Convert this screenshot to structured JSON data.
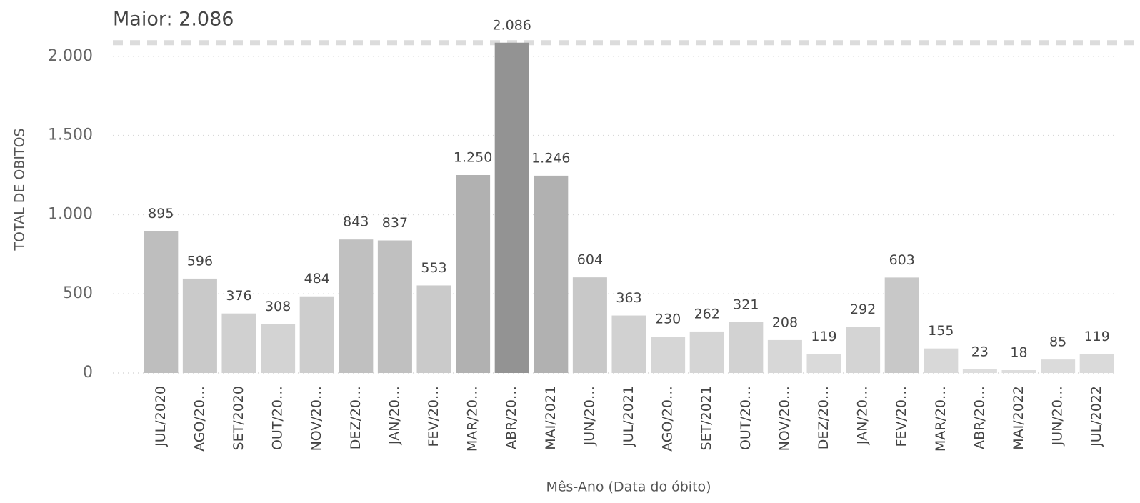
{
  "chart_data": {
    "type": "bar",
    "annotation": {
      "label": "Maior: 2.086",
      "value": 2086
    },
    "y_label": "TOTAL DE OBITOS",
    "x_label": "Mês-Ano (Data do óbito)",
    "categories": [
      "JUL/2020",
      "AGO/20…",
      "SET/2020",
      "OUT/20…",
      "NOV/20…",
      "DEZ/20…",
      "JAN/20…",
      "FEV/20…",
      "MAR/20…",
      "ABR/20…",
      "MAI/2021",
      "JUN/20…",
      "JUL/2021",
      "AGO/20…",
      "SET/2021",
      "OUT/20…",
      "NOV/20…",
      "DEZ/20…",
      "JAN/20…",
      "FEV/20…",
      "MAR/20…",
      "ABR/20…",
      "MAI/2022",
      "JUN/20…",
      "JUL/2022"
    ],
    "values": [
      895,
      596,
      376,
      308,
      484,
      843,
      837,
      553,
      1250,
      2086,
      1246,
      604,
      363,
      230,
      262,
      321,
      208,
      119,
      292,
      603,
      155,
      23,
      18,
      85,
      119
    ],
    "value_labels": [
      "895",
      "596",
      "376",
      "308",
      "484",
      "843",
      "837",
      "553",
      "1.250",
      "2.086",
      "1.246",
      "604",
      "363",
      "230",
      "262",
      "321",
      "208",
      "119",
      "292",
      "603",
      "155",
      "23",
      "18",
      "85",
      "119"
    ],
    "color_range": [
      "#dedede",
      "#939393"
    ],
    "ylim": [
      0,
      2130
    ],
    "yticks": [
      0,
      500,
      {
        "value": 1000,
        "label": "1.000"
      },
      {
        "value": 1500,
        "label": "1.500"
      },
      {
        "value": 2000,
        "label": "2.000"
      }
    ],
    "grid": true
  }
}
